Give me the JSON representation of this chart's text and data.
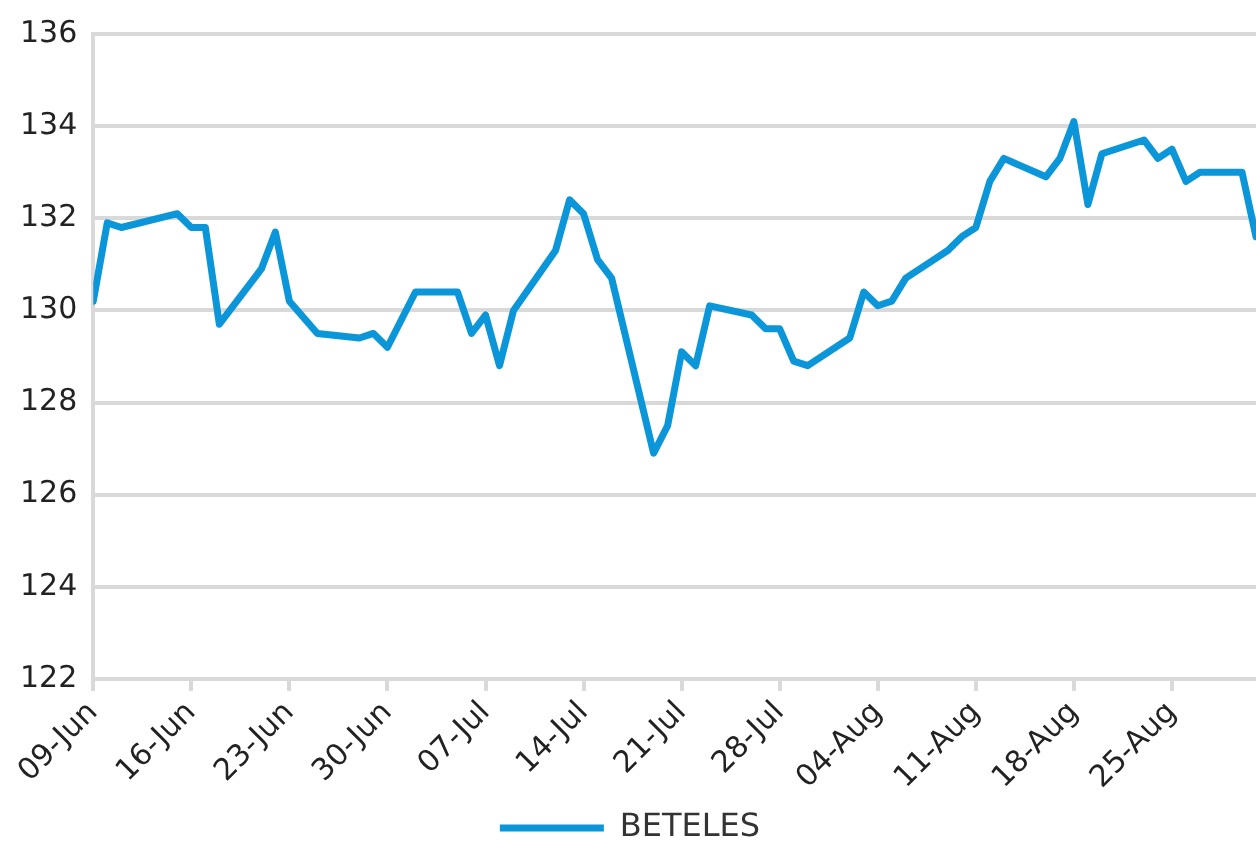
{
  "chart_data": {
    "type": "line",
    "legend": "bottom",
    "grid": "y",
    "marker": "none",
    "line_style": "solid",
    "x": [
      "--06-09",
      "--06-10",
      "--06-11",
      "--06-15",
      "--06-16",
      "--06-17",
      "--06-18",
      "--06-21",
      "--06-22",
      "--06-23",
      "--06-25",
      "--06-28",
      "--06-29",
      "--06-30",
      "--07-02",
      "--07-05",
      "--07-06",
      "--07-07",
      "--07-08",
      "--07-09",
      "--07-12",
      "--07-13",
      "--07-14",
      "--07-15",
      "--07-16",
      "--07-19",
      "--07-20",
      "--07-21",
      "--07-22",
      "--07-23",
      "--07-26",
      "--07-27",
      "--07-28",
      "--07-29",
      "--07-30",
      "--08-02",
      "--08-03",
      "--08-04",
      "--08-05",
      "--08-06",
      "--08-09",
      "--08-10",
      "--08-11",
      "--08-12",
      "--08-13",
      "--08-16",
      "--08-17",
      "--08-18",
      "--08-19",
      "--08-20",
      "--08-23",
      "--08-24",
      "--08-25",
      "--08-26",
      "--08-27",
      "--08-30",
      "--08-31"
    ],
    "series": [
      {
        "name": "BETELES",
        "color": "#0a96d8",
        "values": [
          130.2,
          131.9,
          131.8,
          132.1,
          131.8,
          131.8,
          129.7,
          130.9,
          131.7,
          130.2,
          129.5,
          129.4,
          129.5,
          129.2,
          130.4,
          130.4,
          129.5,
          129.9,
          128.8,
          130.0,
          131.3,
          132.4,
          132.1,
          131.1,
          130.7,
          126.9,
          127.5,
          129.1,
          128.8,
          130.1,
          129.9,
          129.6,
          129.6,
          128.9,
          128.8,
          129.4,
          130.4,
          130.1,
          130.2,
          130.7,
          131.3,
          131.6,
          131.8,
          132.8,
          133.3,
          132.9,
          133.3,
          134.1,
          132.3,
          133.4,
          133.7,
          133.3,
          133.5,
          132.8,
          133.0,
          133.0,
          131.6
        ]
      }
    ],
    "xlim": [
      "--06-09",
      "--08-31"
    ],
    "xticks": [
      {
        "value": "--06-09",
        "label": "09-Jun"
      },
      {
        "value": "--06-16",
        "label": "16-Jun"
      },
      {
        "value": "--06-23",
        "label": "23-Jun"
      },
      {
        "value": "--06-30",
        "label": "30-Jun"
      },
      {
        "value": "--07-07",
        "label": "07-Jul"
      },
      {
        "value": "--07-14",
        "label": "14-Jul"
      },
      {
        "value": "--07-21",
        "label": "21-Jul"
      },
      {
        "value": "--07-28",
        "label": "28-Jul"
      },
      {
        "value": "--08-04",
        "label": "04-Aug"
      },
      {
        "value": "--08-11",
        "label": "11-Aug"
      },
      {
        "value": "--08-18",
        "label": "18-Aug"
      },
      {
        "value": "--08-25",
        "label": "25-Aug"
      }
    ],
    "ylim": [
      122,
      136
    ],
    "yticks": [
      122,
      124,
      126,
      128,
      130,
      132,
      134,
      136
    ]
  }
}
